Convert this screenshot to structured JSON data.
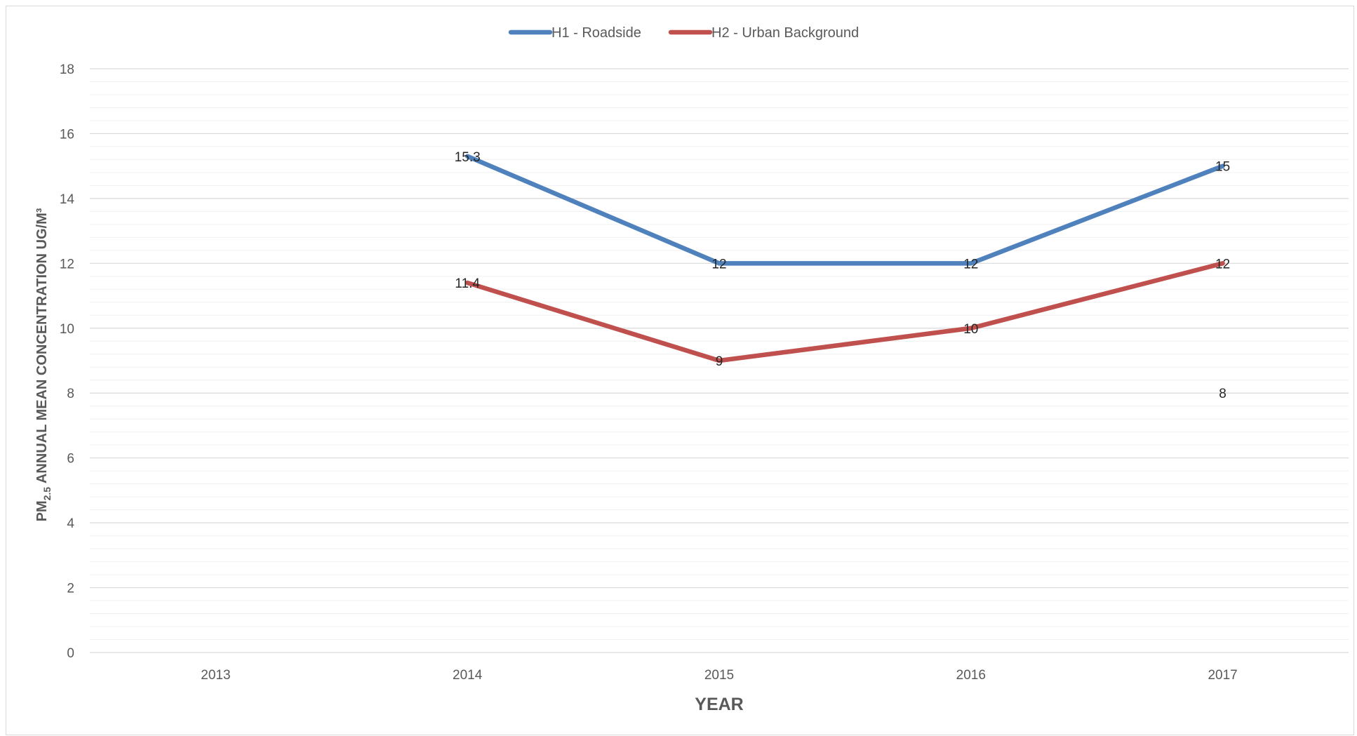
{
  "chart_data": {
    "type": "line",
    "title": "",
    "xlabel": "YEAR",
    "ylabel": {
      "prefix": "PM",
      "subscript": "2.5",
      "suffix": " ANNUAL MEAN CONCENTRATION UG/M³"
    },
    "categories": [
      "2013",
      "2014",
      "2015",
      "2016",
      "2017"
    ],
    "ylim": [
      0,
      18
    ],
    "yticks": [
      0,
      2,
      4,
      6,
      8,
      10,
      12,
      14,
      16,
      18
    ],
    "grid": true,
    "legend_position": "top",
    "series": [
      {
        "name": "H1 - Roadside",
        "color": "#4f81bd",
        "values": [
          null,
          15.3,
          12,
          12,
          15
        ],
        "labels": [
          "",
          "15.3",
          "12",
          "12",
          "15"
        ]
      },
      {
        "name": "H2 - Urban Background",
        "color": "#c0504d",
        "values": [
          null,
          11.4,
          9,
          10,
          12
        ],
        "labels": [
          "",
          "11.4",
          "9",
          "10",
          "12"
        ]
      }
    ],
    "annotations": [
      {
        "category": "2017",
        "value": 8,
        "text": "8"
      }
    ]
  }
}
